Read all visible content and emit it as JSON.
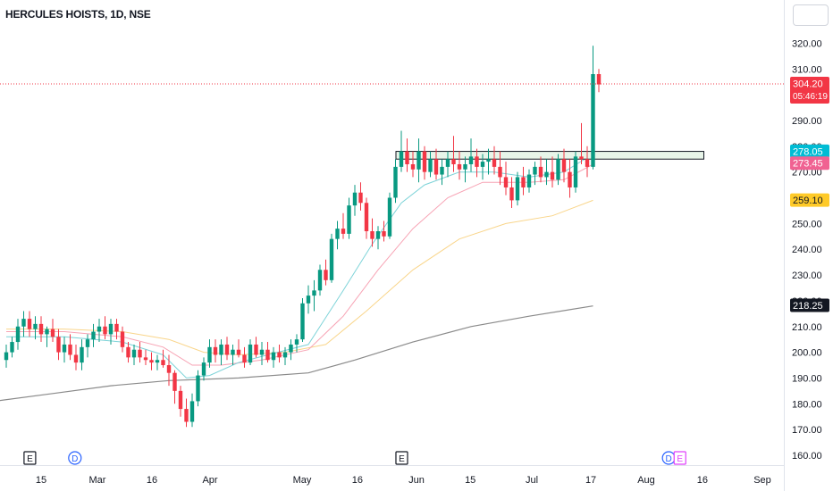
{
  "header": {
    "symbol": "HERCULES HOISTS",
    "interval": "1D",
    "exchange": "NSE"
  },
  "colors": {
    "up": "#089981",
    "down": "#f23645",
    "ema_fast": "#7dd3d8",
    "ema_mid": "#f7a3b4",
    "ema_slow": "#f9d58a",
    "ema_long": "#8a8a8a",
    "range_box_fill": "#e8f5e9",
    "price_line": "#f23645"
  },
  "chart_data": {
    "type": "candlestick",
    "ylim": [
      157,
      326
    ],
    "grid": false,
    "y_ticks": [
      160,
      170,
      180,
      190,
      200,
      210,
      220,
      230,
      240,
      250,
      260,
      270,
      280,
      290,
      300,
      310,
      320
    ],
    "y_tick_labels": [
      "160.00",
      "170.00",
      "180.00",
      "190.00",
      "200.00",
      "210.00",
      "220.00",
      "230.00",
      "240.00",
      "250.00",
      "260.00",
      "270.00",
      "280.00",
      "290.00",
      "300.00",
      "310.00",
      "320.00"
    ],
    "x_labels": [
      {
        "label": "15",
        "date": "2024-02-15"
      },
      {
        "label": "Mar",
        "date": "2024-03-01"
      },
      {
        "label": "16",
        "date": "2024-03-16"
      },
      {
        "label": "Apr",
        "date": "2024-04-01"
      },
      {
        "label": "May",
        "date": "2024-05-01"
      },
      {
        "label": "16",
        "date": "2024-05-16"
      },
      {
        "label": "Jun",
        "date": "2024-06-01"
      },
      {
        "label": "15",
        "date": "2024-06-15"
      },
      {
        "label": "Jul",
        "date": "2024-07-01"
      },
      {
        "label": "17",
        "date": "2024-07-17"
      },
      {
        "label": "Aug",
        "date": "2024-08-01"
      },
      {
        "label": "16",
        "date": "2024-08-16"
      },
      {
        "label": "Sep",
        "date": "2024-09-01"
      }
    ],
    "candles": [
      [
        197,
        203,
        194,
        200
      ],
      [
        200,
        206,
        198,
        204
      ],
      [
        204,
        213,
        201,
        210
      ],
      [
        210,
        216,
        206,
        213
      ],
      [
        213,
        216,
        206,
        209
      ],
      [
        209,
        214,
        205,
        211
      ],
      [
        211,
        214,
        204,
        207
      ],
      [
        207,
        210,
        202,
        209
      ],
      [
        209,
        213,
        204,
        206
      ],
      [
        206,
        209,
        197,
        200
      ],
      [
        200,
        206,
        196,
        203
      ],
      [
        203,
        207,
        197,
        199
      ],
      [
        199,
        203,
        193,
        196
      ],
      [
        196,
        205,
        193,
        202
      ],
      [
        202,
        207,
        198,
        205
      ],
      [
        205,
        211,
        202,
        208
      ],
      [
        208,
        213,
        204,
        210
      ],
      [
        210,
        214,
        205,
        207
      ],
      [
        207,
        213,
        203,
        211
      ],
      [
        211,
        213,
        205,
        208
      ],
      [
        208,
        210,
        200,
        202
      ],
      [
        202,
        204,
        196,
        198
      ],
      [
        198,
        203,
        195,
        201
      ],
      [
        201,
        204,
        196,
        198
      ],
      [
        198,
        201,
        195,
        197
      ],
      [
        197,
        200,
        193,
        196
      ],
      [
        196,
        199,
        193,
        197
      ],
      [
        197,
        201,
        194,
        195
      ],
      [
        195,
        199,
        187,
        192
      ],
      [
        192,
        193,
        180,
        185
      ],
      [
        185,
        187,
        175,
        178
      ],
      [
        178,
        182,
        171,
        173
      ],
      [
        173,
        184,
        171,
        181
      ],
      [
        181,
        193,
        179,
        191
      ],
      [
        191,
        198,
        189,
        196
      ],
      [
        196,
        205,
        194,
        202
      ],
      [
        202,
        205,
        196,
        199
      ],
      [
        199,
        205,
        195,
        203
      ],
      [
        203,
        206,
        197,
        199
      ],
      [
        199,
        203,
        195,
        201
      ],
      [
        201,
        205,
        198,
        199
      ],
      [
        199,
        202,
        194,
        196
      ],
      [
        196,
        205,
        195,
        203
      ],
      [
        203,
        206,
        198,
        199
      ],
      [
        199,
        204,
        195,
        201
      ],
      [
        201,
        204,
        196,
        197
      ],
      [
        197,
        202,
        194,
        200
      ],
      [
        200,
        203,
        196,
        198
      ],
      [
        198,
        202,
        195,
        200
      ],
      [
        200,
        205,
        197,
        203
      ],
      [
        203,
        207,
        200,
        205
      ],
      [
        205,
        221,
        204,
        219
      ],
      [
        219,
        226,
        215,
        222
      ],
      [
        222,
        228,
        216,
        224
      ],
      [
        224,
        234,
        222,
        232
      ],
      [
        232,
        236,
        226,
        228
      ],
      [
        228,
        246,
        227,
        244
      ],
      [
        244,
        251,
        240,
        248
      ],
      [
        248,
        254,
        244,
        246
      ],
      [
        246,
        260,
        244,
        257
      ],
      [
        257,
        265,
        253,
        262
      ],
      [
        262,
        266,
        255,
        258
      ],
      [
        258,
        260,
        244,
        247
      ],
      [
        247,
        252,
        241,
        244
      ],
      [
        244,
        249,
        240,
        247
      ],
      [
        247,
        251,
        243,
        245
      ],
      [
        245,
        262,
        244,
        260
      ],
      [
        260,
        275,
        258,
        272
      ],
      [
        272,
        286,
        270,
        278
      ],
      [
        278,
        283,
        270,
        273
      ],
      [
        273,
        278,
        268,
        271
      ],
      [
        271,
        283,
        266,
        278
      ],
      [
        278,
        280,
        267,
        270
      ],
      [
        270,
        278,
        268,
        275
      ],
      [
        275,
        279,
        267,
        269
      ],
      [
        269,
        275,
        265,
        272
      ],
      [
        272,
        278,
        268,
        275
      ],
      [
        275,
        284,
        270,
        273
      ],
      [
        273,
        278,
        267,
        271
      ],
      [
        271,
        276,
        266,
        273
      ],
      [
        273,
        283,
        270,
        276
      ],
      [
        276,
        279,
        268,
        272
      ],
      [
        272,
        277,
        267,
        274
      ],
      [
        274,
        279,
        269,
        275
      ],
      [
        275,
        280,
        269,
        272
      ],
      [
        272,
        278,
        265,
        268
      ],
      [
        268,
        274,
        261,
        264
      ],
      [
        264,
        268,
        256,
        259
      ],
      [
        259,
        270,
        257,
        268
      ],
      [
        268,
        272,
        261,
        264
      ],
      [
        264,
        271,
        262,
        269
      ],
      [
        269,
        274,
        265,
        272
      ],
      [
        272,
        276,
        266,
        268
      ],
      [
        268,
        275,
        265,
        270
      ],
      [
        270,
        276,
        264,
        267
      ],
      [
        267,
        277,
        265,
        275
      ],
      [
        275,
        279,
        266,
        270
      ],
      [
        270,
        275,
        260,
        264
      ],
      [
        264,
        278,
        262,
        276
      ],
      [
        276,
        289,
        273,
        275
      ],
      [
        275,
        280,
        268,
        272
      ],
      [
        272,
        319,
        271,
        308
      ],
      [
        308,
        310,
        301,
        304
      ]
    ],
    "ema_fast": [
      [
        0,
        206
      ],
      [
        10,
        206
      ],
      [
        20,
        204
      ],
      [
        27,
        199
      ],
      [
        31,
        190
      ],
      [
        35,
        191
      ],
      [
        40,
        196
      ],
      [
        45,
        199
      ],
      [
        52,
        203
      ],
      [
        58,
        224
      ],
      [
        63,
        242
      ],
      [
        68,
        258
      ],
      [
        72,
        265
      ],
      [
        78,
        270
      ],
      [
        84,
        270
      ],
      [
        90,
        268
      ],
      [
        96,
        270
      ],
      [
        101,
        277
      ]
    ],
    "ema_mid": [
      [
        0,
        208
      ],
      [
        10,
        208
      ],
      [
        20,
        206
      ],
      [
        27,
        202
      ],
      [
        32,
        195
      ],
      [
        37,
        195
      ],
      [
        44,
        197
      ],
      [
        52,
        201
      ],
      [
        58,
        214
      ],
      [
        64,
        232
      ],
      [
        70,
        248
      ],
      [
        76,
        260
      ],
      [
        82,
        266
      ],
      [
        90,
        266
      ],
      [
        96,
        267
      ],
      [
        101,
        273
      ]
    ],
    "ema_slow": [
      [
        0,
        209
      ],
      [
        10,
        209
      ],
      [
        20,
        208
      ],
      [
        28,
        205
      ],
      [
        34,
        200
      ],
      [
        40,
        199
      ],
      [
        48,
        200
      ],
      [
        55,
        203
      ],
      [
        62,
        216
      ],
      [
        70,
        232
      ],
      [
        78,
        244
      ],
      [
        86,
        250
      ],
      [
        94,
        253
      ],
      [
        101,
        259
      ]
    ],
    "ema_long": [
      [
        -2,
        181
      ],
      [
        8,
        184
      ],
      [
        18,
        187
      ],
      [
        28,
        189
      ],
      [
        40,
        190
      ],
      [
        52,
        192
      ],
      [
        60,
        197
      ],
      [
        70,
        204
      ],
      [
        80,
        210
      ],
      [
        90,
        214
      ],
      [
        101,
        218
      ]
    ],
    "range_box": {
      "x_from": 67,
      "x_to": 120,
      "y_low": 275,
      "y_high": 278
    },
    "price_line": 304.2,
    "price_labels": [
      {
        "value": 304.2,
        "text": "304.20",
        "sub": "05:46:19",
        "bg": "#f23645",
        "fg": "#ffffff"
      },
      {
        "value": 278.05,
        "text": "278.05",
        "bg": "#00bcd4",
        "fg": "#ffffff"
      },
      {
        "value": 273.45,
        "text": "273.45",
        "bg": "#f06292",
        "fg": "#ffffff"
      },
      {
        "value": 259.1,
        "text": "259.10",
        "bg": "#ffca28",
        "fg": "#131722"
      },
      {
        "value": 218.25,
        "text": "218.25",
        "bg": "#131722",
        "fg": "#ffffff"
      }
    ],
    "event_markers": [
      {
        "text": "E",
        "date": "2024-02-12",
        "color": "#131722",
        "shape": "square"
      },
      {
        "text": "D",
        "date": "2024-02-24",
        "color": "#2962ff",
        "shape": "circle"
      },
      {
        "text": "E",
        "date": "2024-05-28",
        "color": "#131722",
        "shape": "square"
      },
      {
        "text": "D",
        "date": "2024-08-07",
        "color": "#2962ff",
        "shape": "circle"
      },
      {
        "text": "E",
        "date": "2024-08-10",
        "color": "#e040fb",
        "shape": "square"
      }
    ]
  }
}
